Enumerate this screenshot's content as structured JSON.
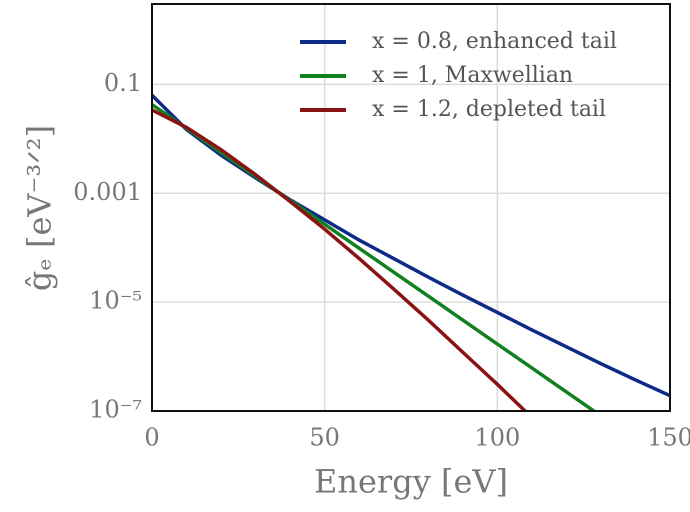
{
  "chart_data": {
    "type": "line",
    "xlabel": "Energy [eV]",
    "ylabel": "ĝₑ [eV⁻³ᐟ²]",
    "x": [
      0,
      10,
      20,
      30,
      40,
      50,
      60,
      70,
      80,
      90,
      100,
      110,
      120,
      130,
      140,
      150
    ],
    "series": [
      {
        "name": "x = 0.8, enhanced tail",
        "color": "#0c2a87",
        "values": [
          0.0631,
          0.0148,
          0.00501,
          0.00191,
          0.000759,
          0.000324,
          0.000138,
          6.31e-05,
          2.88e-05,
          1.35e-05,
          6.46e-06,
          3.09e-06,
          1.51e-06,
          7.41e-07,
          3.72e-07,
          1.91e-07
        ]
      },
      {
        "name": "x = 1, Maxwellian",
        "color": "#13801f",
        "values": [
          0.0427,
          0.0155,
          0.00562,
          0.00204,
          0.000741,
          0.000269,
          9.77e-05,
          3.55e-05,
          1.29e-05,
          4.68e-06,
          1.7e-06,
          6.17e-07,
          2.24e-07,
          8.13e-08,
          null,
          null
        ]
      },
      {
        "name": "x = 1.2, depleted tail",
        "color": "#8b1212",
        "values": [
          0.0339,
          0.0162,
          0.00631,
          0.00219,
          0.000708,
          0.000219,
          6.31e-05,
          1.74e-05,
          4.68e-06,
          1.2e-06,
          3.09e-07,
          7.59e-08,
          null,
          null,
          null,
          null
        ]
      }
    ],
    "xlim": [
      0,
      150
    ],
    "xticks": [
      0,
      50,
      100,
      150
    ],
    "ylim": [
      1e-07,
      3
    ],
    "log_y": true,
    "yticks": [
      {
        "value": 1e-07,
        "label": "10⁻⁷"
      },
      {
        "value": 1e-05,
        "label": "10⁻⁵"
      },
      0.001,
      0.1
    ],
    "grid": true,
    "legend": "upper right"
  }
}
